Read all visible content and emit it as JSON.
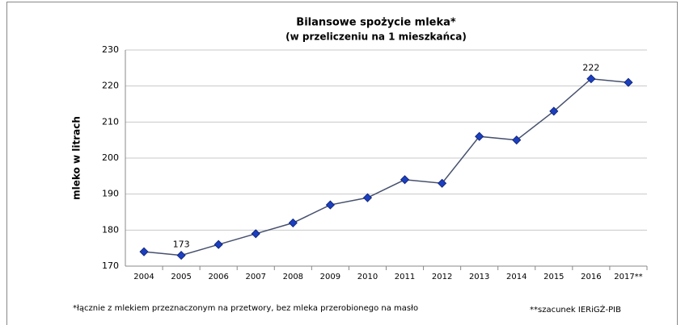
{
  "chart_data": {
    "type": "line",
    "title": "Bilansowe spożycie mleka*",
    "subtitle": "(w przeliczeniu na 1 mieszkańca)",
    "y_label": "mleko w litrach",
    "categories": [
      "2004",
      "2005",
      "2006",
      "2007",
      "2008",
      "2009",
      "2010",
      "2011",
      "2012",
      "2013",
      "2014",
      "2015",
      "2016",
      "2017**"
    ],
    "values": [
      174,
      173,
      176,
      179,
      182,
      187,
      189,
      194,
      193,
      206,
      205,
      213,
      222,
      221
    ],
    "value_labels": [
      null,
      "173",
      null,
      null,
      null,
      null,
      null,
      null,
      null,
      null,
      null,
      null,
      "222",
      null
    ],
    "color": "#1c3fbf",
    "line_color": "#46506e",
    "ylim": [
      170,
      230
    ],
    "yticks": [
      170,
      180,
      190,
      200,
      210,
      220,
      230
    ],
    "grid": true,
    "footnote_left": "*łącznie z mlekiem przeznaczonym na przetwory, bez mleka przerobionego na masło",
    "footnote_right": "**szacunek IERiGŻ-PIB"
  }
}
